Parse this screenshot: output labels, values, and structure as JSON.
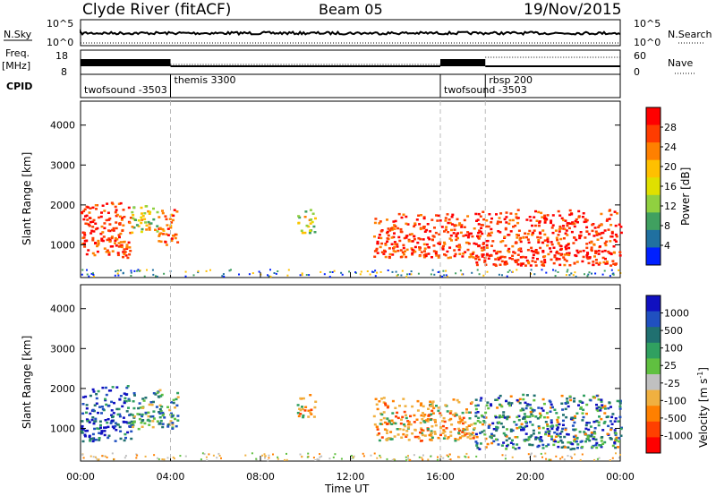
{
  "header": {
    "site": "Clyde River (fitACF)",
    "beam": "Beam 05",
    "date": "19/Nov/2015"
  },
  "top_panels": {
    "nsky": {
      "label": "N.Sky",
      "ticks": [
        "10^5",
        "10^0"
      ],
      "right_label": "N.Search",
      "right_ticks": [
        "10^5",
        "10^0"
      ]
    },
    "freq": {
      "label_line1": "Freq.",
      "label_line2": "[MHz]",
      "ticks": [
        "18",
        "8"
      ],
      "right_label": "Nave",
      "right_ticks": [
        "60",
        "0"
      ]
    },
    "cpid": {
      "label": "CPID",
      "segments": [
        {
          "name": "twofsound -3503",
          "start": 0,
          "end": 4
        },
        {
          "name": "themis 3300",
          "start": 4,
          "end": 16
        },
        {
          "name": "twofsound -3503",
          "start": 16,
          "end": 18
        },
        {
          "name": "rbsp 200",
          "start": 18,
          "end": 24
        }
      ]
    }
  },
  "power_colorbar": {
    "label": "Power [dB]",
    "ticks": [
      "28",
      "24",
      "20",
      "16",
      "12",
      "8",
      "4"
    ],
    "colors": [
      "#ff0000",
      "#ff3c00",
      "#ff8000",
      "#ffc000",
      "#e0e000",
      "#90d040",
      "#40a060",
      "#2070a0",
      "#0020ff"
    ]
  },
  "velocity_colorbar": {
    "label": "Velocity [m s",
    "label_sup": "-1",
    "label_end": "]",
    "ticks": [
      "1000",
      "500",
      "100",
      "25",
      "-25",
      "-100",
      "-500",
      "-1000"
    ],
    "colors": [
      "#1010c0",
      "#2050c0",
      "#207070",
      "#30a060",
      "#60c040",
      "#c0c0c0",
      "#f0b040",
      "#ff8000",
      "#ff4000",
      "#ff0000"
    ]
  },
  "axes": {
    "ylabel": "Slant Range [km]",
    "yticks": [
      "4000",
      "3000",
      "2000",
      "1000"
    ],
    "xticks": [
      "00:00",
      "04:00",
      "08:00",
      "12:00",
      "16:00",
      "20:00",
      "00:00"
    ],
    "xlabel": "Time UT"
  },
  "chart_data": [
    {
      "type": "heatmap",
      "title": "Power",
      "xlabel": "Time UT",
      "ylabel": "Slant Range [km]",
      "xlim": [
        0,
        24
      ],
      "ylim": [
        180,
        4600
      ],
      "colorbar": {
        "label": "Power [dB]",
        "range": [
          0,
          32
        ]
      },
      "scatter_regions": [
        {
          "x": [
            0.0,
            2.2
          ],
          "y": [
            700,
            2100
          ],
          "dominant": "28+"
        },
        {
          "x": [
            2.2,
            3.4
          ],
          "y": [
            1300,
            2000
          ],
          "dominant": "12-20"
        },
        {
          "x": [
            3.4,
            4.3
          ],
          "y": [
            1000,
            1900
          ],
          "dominant": "20-28"
        },
        {
          "x": [
            9.6,
            10.4
          ],
          "y": [
            1300,
            1900
          ],
          "dominant": "12-20"
        },
        {
          "x": [
            13.0,
            17.5
          ],
          "y": [
            700,
            1800
          ],
          "dominant": "28+"
        },
        {
          "x": [
            17.5,
            24.0
          ],
          "y": [
            500,
            1900
          ],
          "dominant": "28+"
        }
      ]
    },
    {
      "type": "heatmap",
      "title": "Velocity",
      "xlabel": "Time UT",
      "ylabel": "Slant Range [km]",
      "xlim": [
        0,
        24
      ],
      "ylim": [
        180,
        4600
      ],
      "colorbar": {
        "label": "Velocity [m s-1]",
        "range": [
          -1000,
          1000
        ]
      },
      "scatter_regions": [
        {
          "x": [
            0.0,
            2.2
          ],
          "y": [
            700,
            2100
          ],
          "dominant": "500-1000"
        },
        {
          "x": [
            2.2,
            4.3
          ],
          "y": [
            1000,
            2000
          ],
          "dominant": "100-500"
        },
        {
          "x": [
            9.6,
            10.4
          ],
          "y": [
            1300,
            1900
          ],
          "dominant": "-100 to -500"
        },
        {
          "x": [
            13.0,
            17.5
          ],
          "y": [
            700,
            1800
          ],
          "dominant": "-100 to -500"
        },
        {
          "x": [
            17.5,
            24.0
          ],
          "y": [
            500,
            1900
          ],
          "dominant": "100-1000"
        }
      ]
    }
  ]
}
